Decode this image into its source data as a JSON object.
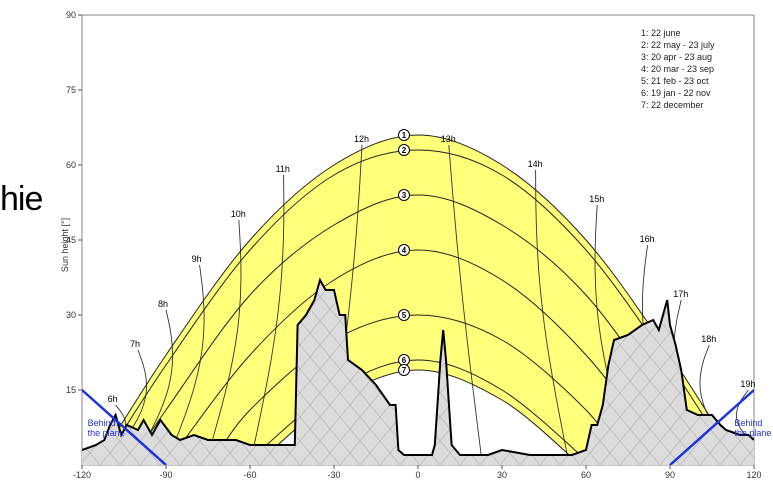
{
  "side_text": "hie",
  "chart_data": {
    "type": "line",
    "title": "",
    "xlabel": "",
    "ylabel": "Sun height [°]",
    "xlim": [
      -120,
      120
    ],
    "ylim": [
      0,
      90
    ],
    "x_ticks": [
      -120,
      -90,
      -60,
      -30,
      0,
      30,
      60,
      90,
      120
    ],
    "y_ticks": [
      15,
      30,
      45,
      60,
      75,
      90
    ],
    "legend_position": "top-right",
    "legend": [
      "1: 22 june",
      "2: 22 may - 23 july",
      "3: 20 apr - 23 aug",
      "4: 20 mar - 23 sep",
      "5: 21 feb - 23 oct",
      "6: 19 jan - 22 nov",
      "7: 22 december"
    ],
    "series": [
      {
        "id": "1",
        "values": [
          [
            -115,
            0
          ],
          [
            -90,
            22
          ],
          [
            -60,
            45
          ],
          [
            -30,
            60
          ],
          [
            0,
            66
          ],
          [
            30,
            60
          ],
          [
            60,
            45
          ],
          [
            90,
            22
          ],
          [
            115,
            0
          ]
        ]
      },
      {
        "id": "2",
        "values": [
          [
            -113,
            0
          ],
          [
            -90,
            20
          ],
          [
            -60,
            43
          ],
          [
            -30,
            58
          ],
          [
            0,
            63
          ],
          [
            30,
            58
          ],
          [
            60,
            43
          ],
          [
            90,
            20
          ],
          [
            113,
            0
          ]
        ]
      },
      {
        "id": "3",
        "values": [
          [
            -103,
            0
          ],
          [
            -90,
            11
          ],
          [
            -60,
            34
          ],
          [
            -30,
            48
          ],
          [
            0,
            54
          ],
          [
            30,
            48
          ],
          [
            60,
            34
          ],
          [
            90,
            11
          ],
          [
            103,
            0
          ]
        ]
      },
      {
        "id": "4",
        "values": [
          [
            -90,
            0
          ],
          [
            -60,
            22
          ],
          [
            -30,
            37
          ],
          [
            0,
            43
          ],
          [
            30,
            37
          ],
          [
            60,
            22
          ],
          [
            90,
            0
          ]
        ]
      },
      {
        "id": "5",
        "values": [
          [
            -74,
            0
          ],
          [
            -60,
            11
          ],
          [
            -30,
            25
          ],
          [
            0,
            30
          ],
          [
            30,
            25
          ],
          [
            60,
            11
          ],
          [
            74,
            0
          ]
        ]
      },
      {
        "id": "6",
        "values": [
          [
            -62,
            0
          ],
          [
            -30,
            15
          ],
          [
            0,
            21
          ],
          [
            30,
            15
          ],
          [
            62,
            0
          ]
        ]
      },
      {
        "id": "7",
        "values": [
          [
            -58,
            0
          ],
          [
            -30,
            13
          ],
          [
            0,
            19
          ],
          [
            30,
            13
          ],
          [
            58,
            0
          ]
        ]
      }
    ],
    "hour_labels": [
      {
        "label": "6h",
        "x": -108,
        "y": 12
      },
      {
        "label": "7h",
        "x": -100,
        "y": 23
      },
      {
        "label": "8h",
        "x": -90,
        "y": 31
      },
      {
        "label": "9h",
        "x": -78,
        "y": 40
      },
      {
        "label": "10h",
        "x": -64,
        "y": 49
      },
      {
        "label": "11h",
        "x": -48,
        "y": 58
      },
      {
        "label": "12h",
        "x": -20,
        "y": 64
      },
      {
        "label": "13h",
        "x": 11,
        "y": 64
      },
      {
        "label": "14h",
        "x": 42,
        "y": 59
      },
      {
        "label": "15h",
        "x": 64,
        "y": 52
      },
      {
        "label": "16h",
        "x": 82,
        "y": 44
      },
      {
        "label": "17h",
        "x": 94,
        "y": 33
      },
      {
        "label": "18h",
        "x": 104,
        "y": 24
      },
      {
        "label": "19h",
        "x": 118,
        "y": 15
      }
    ],
    "horizon": [
      [
        -120,
        3
      ],
      [
        -115,
        4
      ],
      [
        -112,
        5
      ],
      [
        -110,
        8
      ],
      [
        -108,
        10
      ],
      [
        -106,
        6
      ],
      [
        -104,
        8
      ],
      [
        -100,
        7
      ],
      [
        -98,
        9
      ],
      [
        -95,
        6
      ],
      [
        -92,
        9
      ],
      [
        -88,
        6
      ],
      [
        -85,
        5
      ],
      [
        -80,
        6
      ],
      [
        -75,
        5
      ],
      [
        -70,
        5
      ],
      [
        -65,
        5
      ],
      [
        -60,
        4
      ],
      [
        -55,
        4
      ],
      [
        -50,
        4
      ],
      [
        -44,
        4
      ],
      [
        -43,
        28
      ],
      [
        -40,
        30
      ],
      [
        -37,
        33
      ],
      [
        -35,
        37
      ],
      [
        -33,
        35
      ],
      [
        -30,
        35
      ],
      [
        -28,
        30
      ],
      [
        -26,
        30
      ],
      [
        -25,
        21
      ],
      [
        -20,
        19
      ],
      [
        -15,
        16
      ],
      [
        -10,
        12
      ],
      [
        -8,
        12
      ],
      [
        -7,
        3
      ],
      [
        -5,
        2
      ],
      [
        0,
        2
      ],
      [
        5,
        2
      ],
      [
        6,
        4
      ],
      [
        8,
        21
      ],
      [
        9,
        27
      ],
      [
        10,
        21
      ],
      [
        12,
        4
      ],
      [
        15,
        2
      ],
      [
        20,
        2
      ],
      [
        25,
        2
      ],
      [
        30,
        3
      ],
      [
        40,
        2
      ],
      [
        50,
        2
      ],
      [
        55,
        2
      ],
      [
        60,
        3
      ],
      [
        62,
        8
      ],
      [
        64,
        8
      ],
      [
        66,
        12
      ],
      [
        68,
        20
      ],
      [
        70,
        25
      ],
      [
        75,
        26
      ],
      [
        80,
        28
      ],
      [
        84,
        29
      ],
      [
        86,
        27
      ],
      [
        88,
        31
      ],
      [
        89,
        33
      ],
      [
        90,
        28
      ],
      [
        92,
        24
      ],
      [
        94,
        19
      ],
      [
        96,
        11
      ],
      [
        100,
        10
      ],
      [
        105,
        10
      ],
      [
        108,
        8
      ],
      [
        110,
        7
      ],
      [
        115,
        6
      ],
      [
        118,
        6
      ],
      [
        120,
        5
      ]
    ],
    "behind_plane_label": [
      "Behind",
      "the plane"
    ]
  }
}
